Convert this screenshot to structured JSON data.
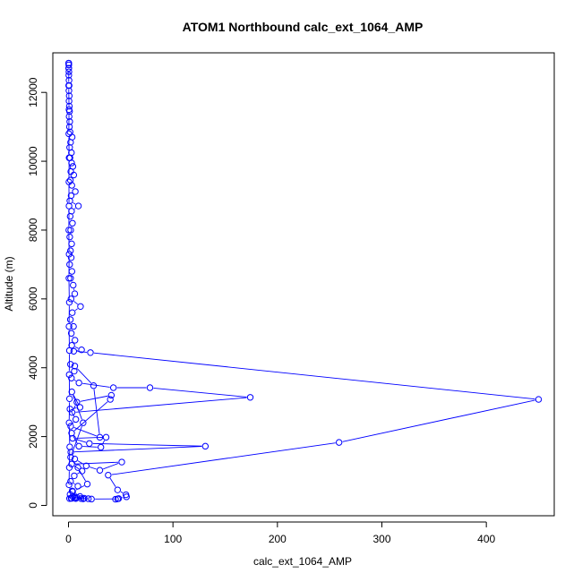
{
  "chart_data": {
    "type": "line",
    "title": "ATOM1 Northbound calc_ext_1064_AMP",
    "xlabel": "calc_ext_1064_AMP",
    "ylabel": "Altitude (m)",
    "xlim": [
      -15,
      465
    ],
    "ylim": [
      -300,
      13150
    ],
    "x_ticks": [
      0,
      100,
      200,
      300,
      400
    ],
    "y_ticks": [
      0,
      2000,
      4000,
      6000,
      8000,
      10000,
      12000
    ],
    "grid": false,
    "legend": "none",
    "marker": "open-circle",
    "colors": {
      "series": "#0000ff",
      "axis": "#000000"
    },
    "series": [
      {
        "name": "",
        "points": [
          {
            "x": 0.2,
            "y": 12850
          },
          {
            "x": 0.3,
            "y": 12800
          },
          {
            "x": 0.2,
            "y": 12700
          },
          {
            "x": 0.4,
            "y": 12600
          },
          {
            "x": 0.3,
            "y": 12500
          },
          {
            "x": 0.5,
            "y": 12350
          },
          {
            "x": 0.6,
            "y": 12200
          },
          {
            "x": 0.4,
            "y": 12050
          },
          {
            "x": 0.7,
            "y": 11900
          },
          {
            "x": 0.5,
            "y": 11750
          },
          {
            "x": 0.8,
            "y": 11600
          },
          {
            "x": 1.0,
            "y": 11450
          },
          {
            "x": 0.6,
            "y": 11300
          },
          {
            "x": 1.2,
            "y": 11150
          },
          {
            "x": 0.9,
            "y": 11000
          },
          {
            "x": 1.5,
            "y": 10850
          },
          {
            "x": 3.5,
            "y": 10700
          },
          {
            "x": 2.0,
            "y": 10550
          },
          {
            "x": 1.1,
            "y": 10400
          },
          {
            "x": 2.8,
            "y": 10250
          },
          {
            "x": 1.4,
            "y": 10100
          },
          {
            "x": 3.0,
            "y": 9950
          },
          {
            "x": 4.2,
            "y": 9850
          },
          {
            "x": 2.2,
            "y": 9700
          },
          {
            "x": 5.0,
            "y": 9600
          },
          {
            "x": 1.8,
            "y": 9450
          },
          {
            "x": 3.2,
            "y": 9300
          },
          {
            "x": 6.5,
            "y": 9120
          },
          {
            "x": 2.5,
            "y": 9000
          },
          {
            "x": 1.3,
            "y": 8850
          },
          {
            "x": 9.5,
            "y": 8700
          },
          {
            "x": 2.9,
            "y": 8550
          },
          {
            "x": 1.6,
            "y": 8400
          },
          {
            "x": 3.8,
            "y": 8200
          },
          {
            "x": 2.1,
            "y": 8000
          },
          {
            "x": 1.2,
            "y": 7800
          },
          {
            "x": 3.0,
            "y": 7600
          },
          {
            "x": 1.9,
            "y": 7400
          },
          {
            "x": 2.6,
            "y": 7200
          },
          {
            "x": 1.1,
            "y": 7000
          },
          {
            "x": 3.3,
            "y": 6800
          },
          {
            "x": 2.0,
            "y": 6600
          },
          {
            "x": 4.5,
            "y": 6400
          },
          {
            "x": 6.0,
            "y": 6150
          },
          {
            "x": 2.4,
            "y": 6000
          },
          {
            "x": 11.5,
            "y": 5780
          },
          {
            "x": 3.6,
            "y": 5600
          },
          {
            "x": 1.8,
            "y": 5400
          },
          {
            "x": 4.8,
            "y": 5200
          },
          {
            "x": 2.7,
            "y": 5000
          },
          {
            "x": 6.2,
            "y": 4800
          },
          {
            "x": 3.1,
            "y": 4650
          },
          {
            "x": 12.5,
            "y": 4520
          },
          {
            "x": 5.0,
            "y": 4480
          },
          {
            "x": 21.0,
            "y": 4440
          },
          {
            "x": 450.0,
            "y": 3080
          },
          {
            "x": 259.0,
            "y": 1830
          },
          {
            "x": 38.0,
            "y": 880
          },
          {
            "x": 47.0,
            "y": 450
          },
          {
            "x": 55.0,
            "y": 310
          },
          {
            "x": 55.5,
            "y": 250
          },
          {
            "x": 48.0,
            "y": 200
          },
          {
            "x": 45.0,
            "y": 180
          },
          {
            "x": 47.0,
            "y": 190
          },
          {
            "x": 22.0,
            "y": 185
          },
          {
            "x": 12.0,
            "y": 200
          },
          {
            "x": 6.0,
            "y": 220
          },
          {
            "x": 2.5,
            "y": 210
          },
          {
            "x": 8.0,
            "y": 230
          },
          {
            "x": 15.0,
            "y": 210
          },
          {
            "x": 4.0,
            "y": 260
          },
          {
            "x": 1.5,
            "y": 320
          },
          {
            "x": 3.5,
            "y": 420
          },
          {
            "x": 9.0,
            "y": 560
          },
          {
            "x": 2.0,
            "y": 700
          },
          {
            "x": 5.5,
            "y": 860
          },
          {
            "x": 13.0,
            "y": 1000
          },
          {
            "x": 3.0,
            "y": 1200
          },
          {
            "x": 51.0,
            "y": 1260
          },
          {
            "x": 30.0,
            "y": 1020
          },
          {
            "x": 17.0,
            "y": 1150
          },
          {
            "x": 6.0,
            "y": 1350
          },
          {
            "x": 2.2,
            "y": 1550
          },
          {
            "x": 131.0,
            "y": 1720
          },
          {
            "x": 20.0,
            "y": 1800
          },
          {
            "x": 4.0,
            "y": 1950
          },
          {
            "x": 36.0,
            "y": 1980
          },
          {
            "x": 31.0,
            "y": 1690
          },
          {
            "x": 10.0,
            "y": 1720
          },
          {
            "x": 3.0,
            "y": 2100
          },
          {
            "x": 40.0,
            "y": 3080
          },
          {
            "x": 41.0,
            "y": 3200
          },
          {
            "x": 8.0,
            "y": 3000
          },
          {
            "x": 3.5,
            "y": 2700
          },
          {
            "x": 174.0,
            "y": 3140
          },
          {
            "x": 78.0,
            "y": 3420
          },
          {
            "x": 43.0,
            "y": 3420
          },
          {
            "x": 10.0,
            "y": 3560
          },
          {
            "x": 2.8,
            "y": 3700
          },
          {
            "x": 5.5,
            "y": 3900
          },
          {
            "x": 1.9,
            "y": 4100
          },
          {
            "x": 6.0,
            "y": 4050
          },
          {
            "x": 24.0,
            "y": 3480
          },
          {
            "x": 30.0,
            "y": 1980
          },
          {
            "x": 2.1,
            "y": 2300
          },
          {
            "x": 7.0,
            "y": 2500
          },
          {
            "x": 1.4,
            "y": 2800
          },
          {
            "x": 11.0,
            "y": 2850
          },
          {
            "x": 3.2,
            "y": 3300
          },
          {
            "x": 14.0,
            "y": 2400
          },
          {
            "x": 2.0,
            "y": 1400
          },
          {
            "x": 9.0,
            "y": 1100
          },
          {
            "x": 18.0,
            "y": 620
          },
          {
            "x": 4.0,
            "y": 400
          },
          {
            "x": 11.0,
            "y": 260
          },
          {
            "x": 1.0,
            "y": 200
          },
          {
            "x": 7.0,
            "y": 200
          },
          {
            "x": 19.0,
            "y": 195
          },
          {
            "x": 14.0,
            "y": 190
          },
          {
            "x": 3.0,
            "y": 205
          },
          {
            "x": 0.5,
            "y": 600
          },
          {
            "x": 0.8,
            "y": 1100
          },
          {
            "x": 1.2,
            "y": 1700
          },
          {
            "x": 0.6,
            "y": 2400
          },
          {
            "x": 1.0,
            "y": 3100
          },
          {
            "x": 0.7,
            "y": 3800
          },
          {
            "x": 0.9,
            "y": 4500
          },
          {
            "x": 0.5,
            "y": 5200
          },
          {
            "x": 0.8,
            "y": 5900
          },
          {
            "x": 0.4,
            "y": 6600
          },
          {
            "x": 0.6,
            "y": 7300
          },
          {
            "x": 0.3,
            "y": 8000
          },
          {
            "x": 0.5,
            "y": 8700
          },
          {
            "x": 0.4,
            "y": 9400
          },
          {
            "x": 0.6,
            "y": 10100
          },
          {
            "x": 0.3,
            "y": 10800
          },
          {
            "x": 0.5,
            "y": 11500
          },
          {
            "x": 0.2,
            "y": 12200
          },
          {
            "x": 0.3,
            "y": 12700
          },
          {
            "x": 0.2,
            "y": 12850
          }
        ]
      }
    ]
  }
}
